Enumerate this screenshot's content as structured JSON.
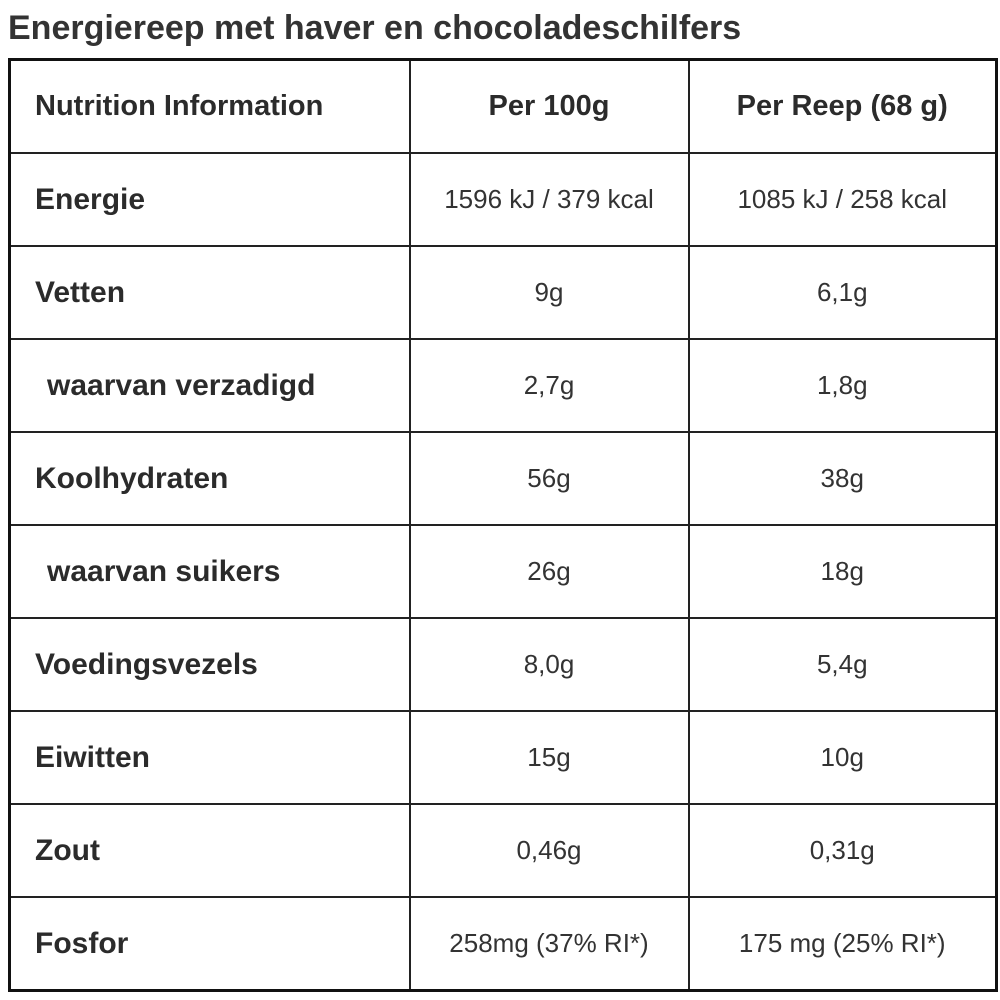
{
  "title": "Energiereep met haver en chocoladeschilfers",
  "table": {
    "headers": [
      "Nutrition Information",
      "Per 100g",
      "Per Reep (68 g)"
    ],
    "rows": [
      {
        "label": "Energie",
        "per100g": "1596 kJ / 379 kcal",
        "perBar": "1085 kJ / 258 kcal",
        "sub": false
      },
      {
        "label": "Vetten",
        "per100g": "9g",
        "perBar": "6,1g",
        "sub": false
      },
      {
        "label": "waarvan verzadigd",
        "per100g": "2,7g",
        "perBar": "1,8g",
        "sub": true
      },
      {
        "label": "Koolhydraten",
        "per100g": "56g",
        "perBar": "38g",
        "sub": false
      },
      {
        "label": "waarvan suikers",
        "per100g": "26g",
        "perBar": "18g",
        "sub": true
      },
      {
        "label": "Voedingsvezels",
        "per100g": "8,0g",
        "perBar": "5,4g",
        "sub": false
      },
      {
        "label": "Eiwitten",
        "per100g": "15g",
        "perBar": "10g",
        "sub": false
      },
      {
        "label": "Zout",
        "per100g": "0,46g",
        "perBar": "0,31g",
        "sub": false
      },
      {
        "label": "Fosfor",
        "per100g": "258mg (37% RI*)",
        "perBar": "175 mg (25% RI*)",
        "sub": false
      }
    ]
  }
}
